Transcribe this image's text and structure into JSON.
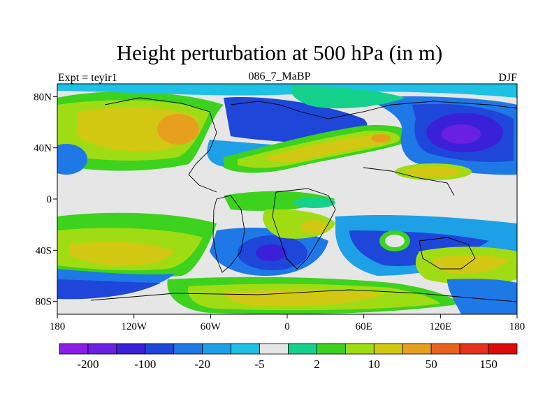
{
  "title": "Height perturbation at 500 hPa (in m)",
  "subtitle_left": "Expt = teyir1",
  "subtitle_center": "086_7_MaBP",
  "subtitle_right": "DJF",
  "x_ticks": [
    "180",
    "120W",
    "60W",
    "0",
    "60E",
    "120E",
    "180"
  ],
  "y_ticks": [
    "80N",
    "40N",
    "0",
    "40S",
    "80S"
  ],
  "colorbar": {
    "colors": [
      "#8a1ee6",
      "#6a20e0",
      "#3a20d8",
      "#1e46d8",
      "#1e78e6",
      "#1ea0e6",
      "#1ec0e6",
      "#e6e6e6",
      "#14d28c",
      "#3cd21e",
      "#a0dc14",
      "#d2c814",
      "#e6a01e",
      "#e6641e",
      "#e6321e",
      "#dc0a0a"
    ],
    "labels": [
      "-200",
      "-100",
      "-20",
      "-5",
      "2",
      "10",
      "50",
      "150"
    ]
  },
  "chart_data": {
    "type": "heatmap",
    "title": "Height perturbation at 500 hPa (in m)",
    "variable": "500 hPa height perturbation",
    "units": "m",
    "xlim": [
      -180,
      180
    ],
    "ylim": [
      -90,
      90
    ],
    "contour_levels": [
      -200,
      -100,
      -20,
      -5,
      2,
      10,
      50,
      150
    ]
  }
}
